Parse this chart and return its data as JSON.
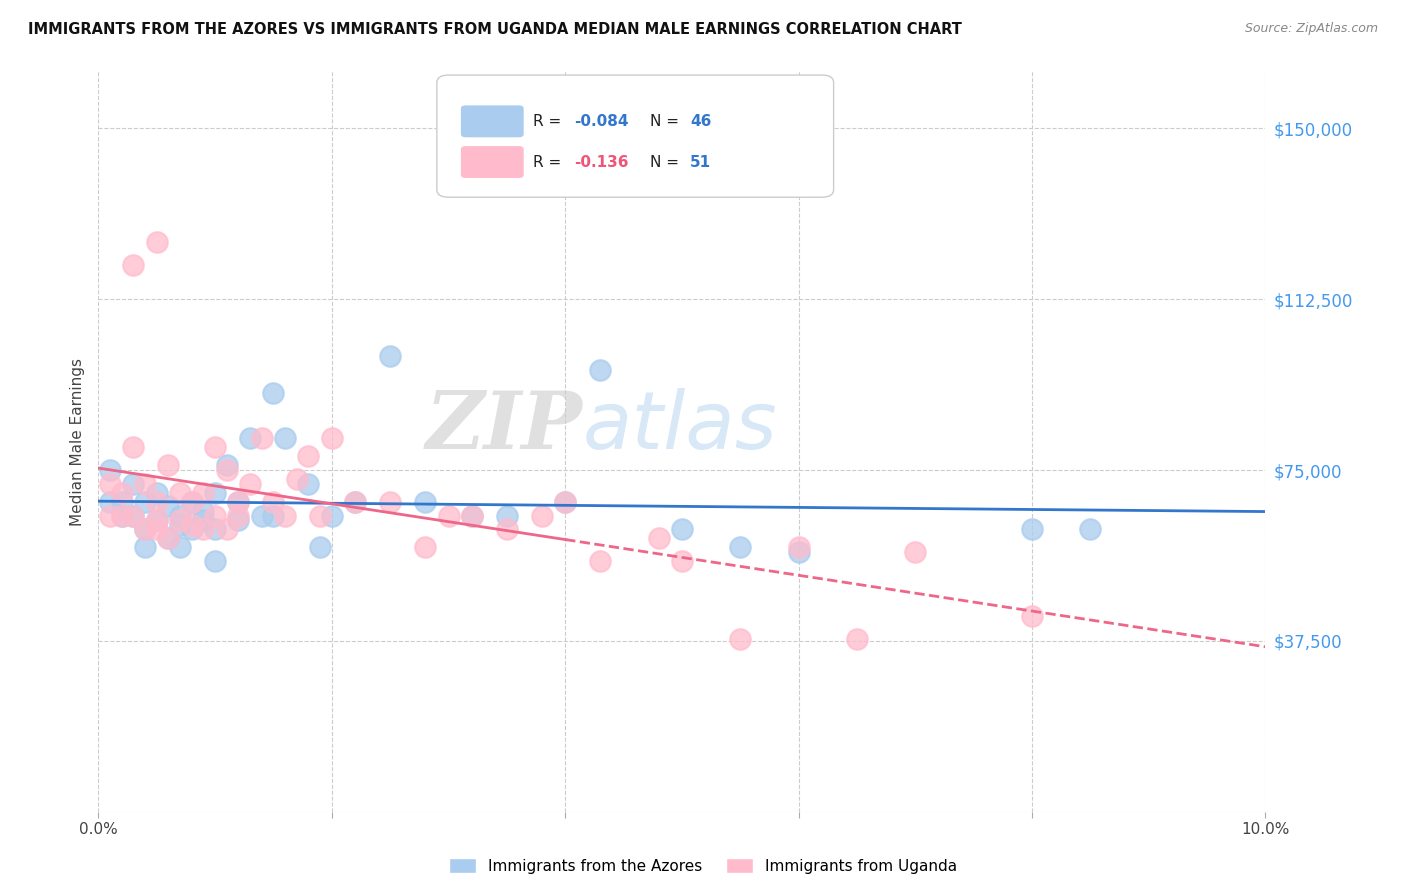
{
  "title": "IMMIGRANTS FROM THE AZORES VS IMMIGRANTS FROM UGANDA MEDIAN MALE EARNINGS CORRELATION CHART",
  "source": "Source: ZipAtlas.com",
  "ylabel": "Median Male Earnings",
  "xlim": [
    0.0,
    0.1
  ],
  "ylim": [
    0,
    162500
  ],
  "yticks": [
    0,
    37500,
    75000,
    112500,
    150000
  ],
  "ytick_labels": [
    "",
    "$37,500",
    "$75,000",
    "$112,500",
    "$150,000"
  ],
  "xticks": [
    0.0,
    0.02,
    0.04,
    0.06,
    0.08,
    0.1
  ],
  "xtick_labels": [
    "0.0%",
    "",
    "",
    "",
    "",
    "10.0%"
  ],
  "background_color": "#ffffff",
  "grid_color": "#cccccc",
  "azores_color": "#aaccee",
  "uganda_color": "#ffbbcc",
  "azores_line_color": "#3377cc",
  "uganda_line_color": "#ee6688",
  "legend_azores_label": "Immigrants from the Azores",
  "legend_uganda_label": "Immigrants from Uganda",
  "R_azores": -0.084,
  "N_azores": 46,
  "R_uganda": -0.136,
  "N_uganda": 51,
  "watermark_zip": "ZIP",
  "watermark_atlas": "atlas",
  "azores_x": [
    0.001,
    0.001,
    0.002,
    0.002,
    0.003,
    0.003,
    0.004,
    0.004,
    0.005,
    0.005,
    0.006,
    0.006,
    0.007,
    0.007,
    0.008,
    0.008,
    0.009,
    0.009,
    0.01,
    0.01,
    0.011,
    0.012,
    0.012,
    0.013,
    0.014,
    0.015,
    0.016,
    0.018,
    0.019,
    0.02,
    0.022,
    0.025,
    0.028,
    0.032,
    0.035,
    0.04,
    0.043,
    0.05,
    0.055,
    0.06,
    0.08,
    0.085,
    0.004,
    0.007,
    0.01,
    0.015
  ],
  "azores_y": [
    68000,
    75000,
    68000,
    65000,
    72000,
    65000,
    68000,
    62000,
    70000,
    64000,
    67000,
    60000,
    65000,
    63000,
    68000,
    62000,
    66000,
    64000,
    70000,
    62000,
    76000,
    68000,
    64000,
    82000,
    65000,
    92000,
    82000,
    72000,
    58000,
    65000,
    68000,
    100000,
    68000,
    65000,
    65000,
    68000,
    97000,
    62000,
    58000,
    57000,
    62000,
    62000,
    58000,
    58000,
    55000,
    65000
  ],
  "uganda_x": [
    0.001,
    0.001,
    0.002,
    0.002,
    0.003,
    0.003,
    0.004,
    0.004,
    0.005,
    0.005,
    0.005,
    0.006,
    0.006,
    0.007,
    0.007,
    0.008,
    0.008,
    0.009,
    0.009,
    0.01,
    0.01,
    0.011,
    0.011,
    0.012,
    0.012,
    0.013,
    0.014,
    0.015,
    0.016,
    0.017,
    0.018,
    0.019,
    0.02,
    0.022,
    0.025,
    0.028,
    0.03,
    0.032,
    0.035,
    0.038,
    0.04,
    0.043,
    0.048,
    0.05,
    0.055,
    0.06,
    0.065,
    0.07,
    0.08,
    0.003,
    0.005
  ],
  "uganda_y": [
    72000,
    65000,
    70000,
    65000,
    80000,
    65000,
    72000,
    62000,
    68000,
    64000,
    62000,
    76000,
    60000,
    70000,
    64000,
    68000,
    63000,
    70000,
    62000,
    80000,
    65000,
    75000,
    62000,
    68000,
    65000,
    72000,
    82000,
    68000,
    65000,
    73000,
    78000,
    65000,
    82000,
    68000,
    68000,
    58000,
    65000,
    65000,
    62000,
    65000,
    68000,
    55000,
    60000,
    55000,
    38000,
    58000,
    38000,
    57000,
    43000,
    120000,
    125000
  ]
}
